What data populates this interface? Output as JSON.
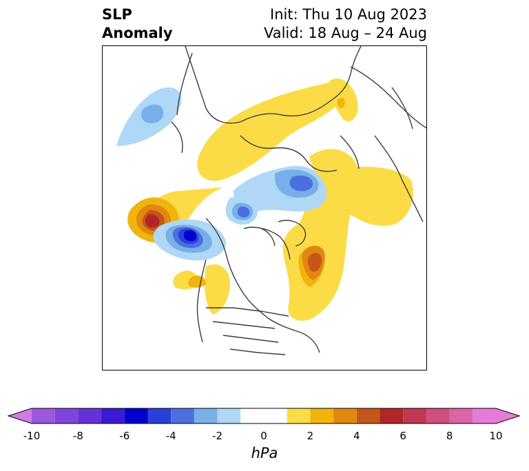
{
  "title": {
    "left_line1": "SLP",
    "left_line2": "Anomaly",
    "right_line1": "Init: Thu 10 Aug 2023",
    "right_line2": "Valid: 18 Aug – 24 Aug"
  },
  "map": {
    "projection": "north polar stereographic",
    "region": "Northern Hemisphere",
    "anomalies": [
      {
        "feature": "North Pacific high",
        "max_hpa": 7
      },
      {
        "feature": "Alaska / Bering low",
        "min_hpa": -6
      },
      {
        "feature": "Gulf of Alaska weak high",
        "max_hpa": 2
      },
      {
        "feature": "Arctic Ocean low",
        "min_hpa": -3
      },
      {
        "feature": "Kara Sea low",
        "min_hpa": -4
      },
      {
        "feature": "Greenland / NW Atlantic high",
        "max_hpa": 5
      },
      {
        "feature": "Siberia / Eurasia high",
        "max_hpa": 2
      },
      {
        "feature": "Japan / Kamchatka low",
        "min_hpa": -3
      }
    ]
  },
  "colorbar": {
    "unit": "hPa",
    "range": [
      -10,
      10
    ],
    "extend": "both",
    "ticks": [
      "-10",
      "-8",
      "-6",
      "-4",
      "-2",
      "0",
      "2",
      "4",
      "6",
      "8",
      "10"
    ],
    "bins": [
      {
        "range": [
          -10,
          -9
        ],
        "color": "#9b57de"
      },
      {
        "range": [
          -9,
          -8
        ],
        "color": "#7f45dd"
      },
      {
        "range": [
          -8,
          -7
        ],
        "color": "#6432d6"
      },
      {
        "range": [
          -7,
          -6
        ],
        "color": "#3b1ad4"
      },
      {
        "range": [
          -6,
          -5
        ],
        "color": "#0000cf"
      },
      {
        "range": [
          -5,
          -4
        ],
        "color": "#2a3fd9"
      },
      {
        "range": [
          -4,
          -3
        ],
        "color": "#4a6fe0"
      },
      {
        "range": [
          -3,
          -2
        ],
        "color": "#78aee9"
      },
      {
        "range": [
          -2,
          -1
        ],
        "color": "#aed8f6"
      },
      {
        "range": [
          -1,
          1
        ],
        "color": "#ffffff"
      },
      {
        "range": [
          1,
          2
        ],
        "color": "#fbdc46"
      },
      {
        "range": [
          2,
          3
        ],
        "color": "#f1b40c"
      },
      {
        "range": [
          3,
          4
        ],
        "color": "#e0880f"
      },
      {
        "range": [
          4,
          5
        ],
        "color": "#c6561a"
      },
      {
        "range": [
          5,
          6
        ],
        "color": "#b12626"
      },
      {
        "range": [
          6,
          7
        ],
        "color": "#c03852"
      },
      {
        "range": [
          7,
          8
        ],
        "color": "#cf4f7e"
      },
      {
        "range": [
          8,
          9
        ],
        "color": "#d964a6"
      },
      {
        "range": [
          9,
          10
        ],
        "color": "#e57bd8"
      }
    ],
    "under_color": "#d17be6",
    "over_color": "#e57bd8"
  }
}
